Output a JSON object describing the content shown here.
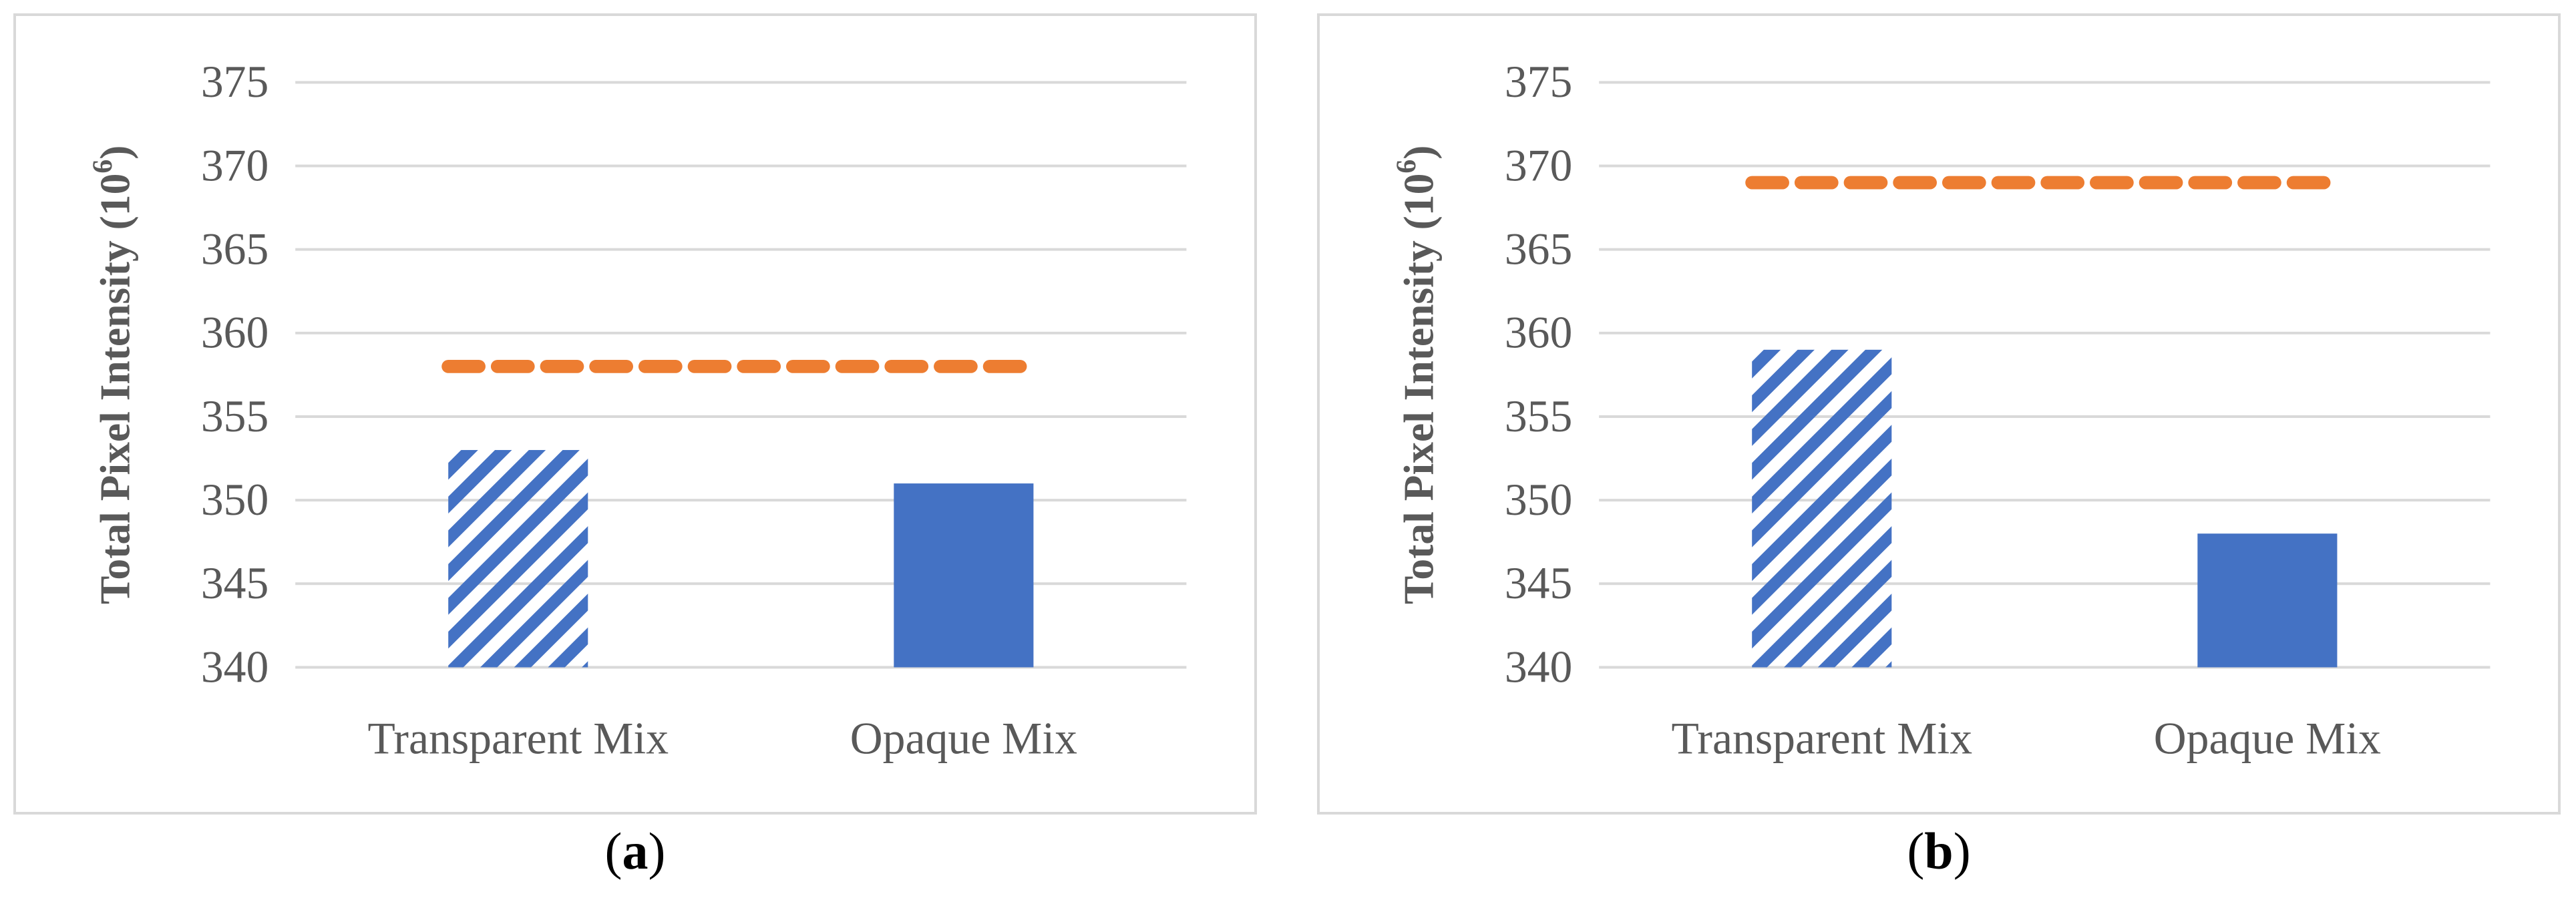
{
  "chart_data": [
    {
      "type": "bar",
      "panel_label": "a",
      "categories": [
        "Transparent Mix",
        "Opaque Mix"
      ],
      "values": [
        353,
        351
      ],
      "bar_styles": [
        "hatched",
        "solid"
      ],
      "reference_line": {
        "value": 358,
        "style": "dashed",
        "color": "#ED7D31"
      },
      "ylabel": "Total Pixel Intensity (10",
      "ylabel_sup": "6",
      "ylabel_close": ")",
      "ylim": [
        340,
        375
      ],
      "yticks": [
        "340",
        "345",
        "350",
        "355",
        "360",
        "365",
        "370",
        "375"
      ],
      "grid": true,
      "bar_color": "#4472C4"
    },
    {
      "type": "bar",
      "panel_label": "b",
      "categories": [
        "Transparent Mix",
        "Opaque Mix"
      ],
      "values": [
        359,
        348
      ],
      "bar_styles": [
        "hatched",
        "solid"
      ],
      "reference_line": {
        "value": 369,
        "style": "dashed",
        "color": "#ED7D31"
      },
      "ylabel": "Total Pixel Intensity (10",
      "ylabel_sup": "6",
      "ylabel_close": ")",
      "ylim": [
        340,
        375
      ],
      "yticks": [
        "340",
        "345",
        "350",
        "355",
        "360",
        "365",
        "370",
        "375"
      ],
      "grid": true,
      "bar_color": "#4472C4"
    }
  ],
  "captions": [
    {
      "open": "(",
      "letter": "a",
      "close": ")"
    },
    {
      "open": "(",
      "letter": "b",
      "close": ")"
    }
  ]
}
